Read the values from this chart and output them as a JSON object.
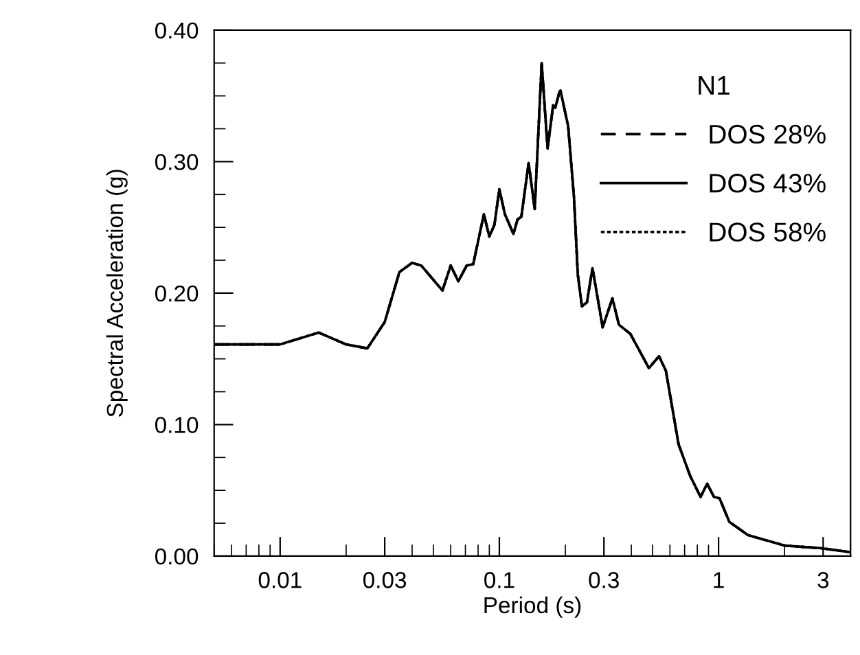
{
  "chart_data": {
    "type": "line",
    "xlabel": "Period (s)",
    "ylabel": "Spectral Acceleration (g)",
    "legend_title": "N1",
    "legend": "top right",
    "log": "x",
    "xlim": [
      0.005,
      4
    ],
    "xticks": [
      0.01,
      0.03,
      0.1,
      0.3,
      1,
      3
    ],
    "ylim": [
      0,
      0.4
    ],
    "yticks": [
      {
        "value": 0,
        "label": "0.00"
      },
      {
        "value": 0.1,
        "label": "0.10"
      },
      {
        "value": 0.2,
        "label": "0.20"
      },
      {
        "value": 0.3,
        "label": "0.30"
      },
      {
        "value": 0.4,
        "label": "0.40"
      }
    ],
    "grid": false,
    "x": [
      0.005,
      0.01,
      0.015,
      0.02,
      0.025,
      0.03,
      0.035,
      0.04,
      0.044,
      0.055,
      0.06,
      0.065,
      0.071,
      0.076,
      0.085,
      0.09,
      0.095,
      0.1,
      0.106,
      0.116,
      0.121,
      0.126,
      0.136,
      0.145,
      0.156,
      0.166,
      0.176,
      0.18,
      0.188,
      0.19,
      0.206,
      0.219,
      0.228,
      0.238,
      0.251,
      0.266,
      0.296,
      0.328,
      0.351,
      0.396,
      0.481,
      0.535,
      0.575,
      0.657,
      0.742,
      0.828,
      0.887,
      0.953,
      1.01,
      1.12,
      1.36,
      2.0,
      2.94,
      4.0
    ],
    "series": [
      {
        "name": "DOS 28%",
        "color": "#000000",
        "line_style": "dashed",
        "values": [
          0.161,
          0.161,
          0.17,
          0.161,
          0.158,
          0.178,
          0.216,
          0.223,
          0.221,
          0.202,
          0.221,
          0.209,
          0.221,
          0.222,
          0.26,
          0.243,
          0.252,
          0.279,
          0.26,
          0.245,
          0.256,
          0.258,
          0.299,
          0.264,
          0.375,
          0.31,
          0.343,
          0.341,
          0.353,
          0.354,
          0.327,
          0.273,
          0.214,
          0.19,
          0.193,
          0.219,
          0.174,
          0.196,
          0.176,
          0.169,
          0.143,
          0.152,
          0.141,
          0.085,
          0.061,
          0.045,
          0.055,
          0.045,
          0.044,
          0.026,
          0.016,
          0.008,
          0.006,
          0.003
        ]
      },
      {
        "name": "DOS 43%",
        "color": "#000000",
        "line_style": "solid",
        "values": [
          0.161,
          0.161,
          0.17,
          0.161,
          0.158,
          0.178,
          0.216,
          0.223,
          0.221,
          0.202,
          0.221,
          0.209,
          0.221,
          0.222,
          0.26,
          0.243,
          0.252,
          0.279,
          0.26,
          0.245,
          0.256,
          0.258,
          0.299,
          0.264,
          0.375,
          0.31,
          0.343,
          0.341,
          0.353,
          0.354,
          0.327,
          0.273,
          0.214,
          0.19,
          0.193,
          0.219,
          0.174,
          0.196,
          0.176,
          0.169,
          0.143,
          0.152,
          0.141,
          0.085,
          0.061,
          0.045,
          0.055,
          0.045,
          0.044,
          0.026,
          0.016,
          0.008,
          0.006,
          0.003
        ]
      },
      {
        "name": "DOS 58%",
        "color": "#000000",
        "line_style": "dotted",
        "values": [
          0.161,
          0.161,
          0.17,
          0.161,
          0.158,
          0.178,
          0.216,
          0.223,
          0.221,
          0.202,
          0.221,
          0.209,
          0.221,
          0.222,
          0.26,
          0.243,
          0.252,
          0.279,
          0.26,
          0.245,
          0.256,
          0.258,
          0.299,
          0.264,
          0.375,
          0.31,
          0.343,
          0.341,
          0.353,
          0.354,
          0.327,
          0.273,
          0.214,
          0.19,
          0.193,
          0.219,
          0.174,
          0.196,
          0.176,
          0.169,
          0.143,
          0.152,
          0.141,
          0.085,
          0.061,
          0.045,
          0.055,
          0.045,
          0.044,
          0.026,
          0.016,
          0.008,
          0.006,
          0.003
        ]
      }
    ]
  }
}
